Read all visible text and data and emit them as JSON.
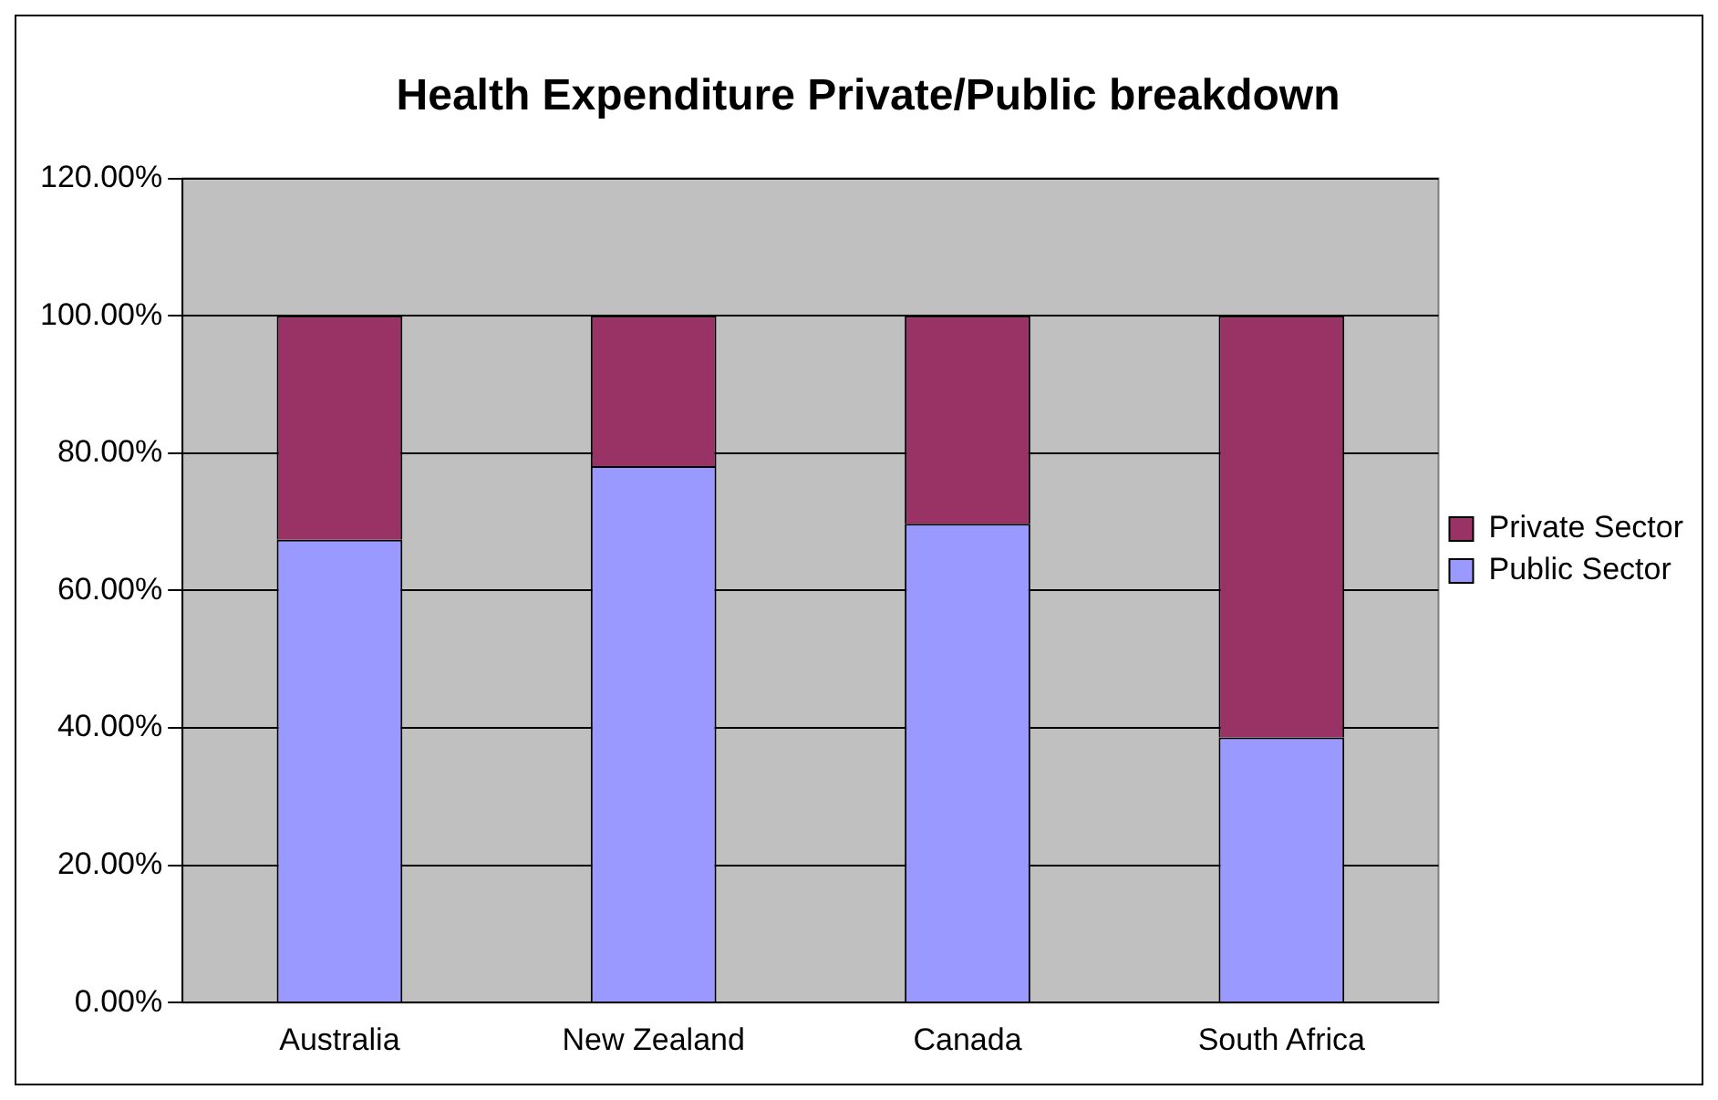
{
  "chart_data": {
    "type": "bar",
    "title": "Health Expenditure Private/Public breakdown",
    "categories": [
      "Australia",
      "New Zealand",
      "Canada",
      "South Africa"
    ],
    "stacked": true,
    "series": [
      {
        "name": "Public Sector",
        "color": "#9999ff",
        "values": [
          67.4,
          78.1,
          69.7,
          38.6
        ]
      },
      {
        "name": "Private Sector",
        "color": "#993366",
        "values": [
          32.6,
          21.9,
          30.3,
          61.4
        ]
      }
    ],
    "ylim": [
      0,
      120
    ],
    "yticks": [
      {
        "value": 0,
        "label": "0.00%"
      },
      {
        "value": 20,
        "label": "20.00%"
      },
      {
        "value": 40,
        "label": "40.00%"
      },
      {
        "value": 60,
        "label": "60.00%"
      },
      {
        "value": 80,
        "label": "80.00%"
      },
      {
        "value": 100,
        "label": "100.00%"
      },
      {
        "value": 120,
        "label": "120.00%"
      }
    ],
    "grid": "y",
    "legend": "right"
  }
}
